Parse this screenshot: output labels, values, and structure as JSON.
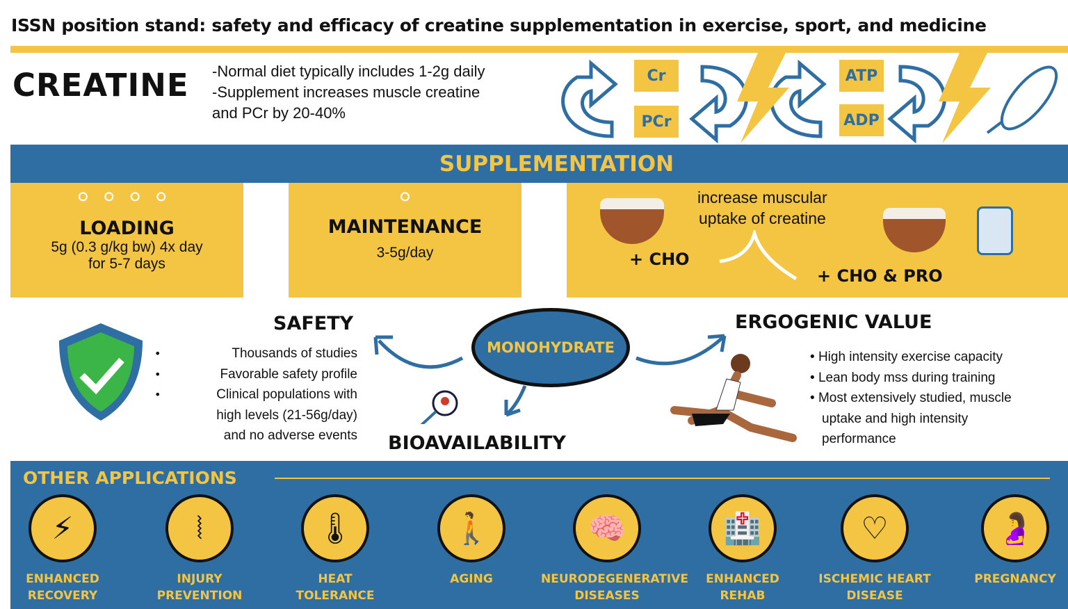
{
  "title": "ISSN position stand: safety and efficacy of creatine supplementation in exercise, sport, and medicine",
  "creatine": {
    "heading": "CREATINE",
    "facts": [
      "-Normal diet typically includes 1-2g daily",
      "-Supplement increases muscle creatine",
      "and PCr by 20-40%"
    ]
  },
  "cycle": {
    "boxes": [
      "Cr",
      "PCr",
      "ATP",
      "ADP"
    ]
  },
  "supplementation": {
    "heading": "SUPPLEMENTATION",
    "loading": {
      "title": "LOADING",
      "lines": [
        "5g (0.3 g/kg bw) 4x day",
        "for 5-7 days"
      ]
    },
    "maintenance": {
      "title": "MAINTENANCE",
      "dose": "3-5g/day"
    },
    "uptake": {
      "text": [
        "increase muscular",
        "uptake of creatine"
      ],
      "cho": "+ CHO",
      "cho_pro": "+ CHO & PRO"
    }
  },
  "safety": {
    "title": "SAFETY",
    "items": [
      "Thousands of studies",
      "Favorable safety profile",
      "Clinical populations with",
      "high levels (21-56g/day)",
      "and no adverse events"
    ]
  },
  "center": {
    "label": "MONOHYDRATE",
    "bioavailability": "BIOAVAILABILITY"
  },
  "ergogenic": {
    "title": "ERGOGENIC VALUE",
    "items": [
      "High intensity exercise capacity",
      "Lean body mss during training",
      "Most extensively studied, muscle",
      "uptake and high intensity",
      "performance"
    ]
  },
  "other": {
    "title": "OTHER APPLICATIONS",
    "apps": [
      {
        "l1": "ENHANCED",
        "l2": "RECOVERY",
        "icon": "recovery-bolt-icon"
      },
      {
        "l1": "INJURY",
        "l2": "PREVENTION",
        "icon": "knee-joint-icon"
      },
      {
        "l1": "HEAT",
        "l2": "TOLERANCE",
        "icon": "thermometer-icon"
      },
      {
        "l1": "AGING",
        "l2": "",
        "icon": "elderly-person-icon"
      },
      {
        "l1": "NEURODEGENERATIVE",
        "l2": "DISEASES",
        "icon": "brain-icon"
      },
      {
        "l1": "ENHANCED",
        "l2": "REHAB",
        "icon": "hospital-icon"
      },
      {
        "l1": "ISCHEMIC HEART",
        "l2": "DISEASE",
        "icon": "heartbeat-icon"
      },
      {
        "l1": "PREGNANCY",
        "l2": "",
        "icon": "pregnancy-icon"
      }
    ]
  },
  "colors": {
    "yellow": "#f4c542",
    "blue": "#2f6ea3"
  }
}
